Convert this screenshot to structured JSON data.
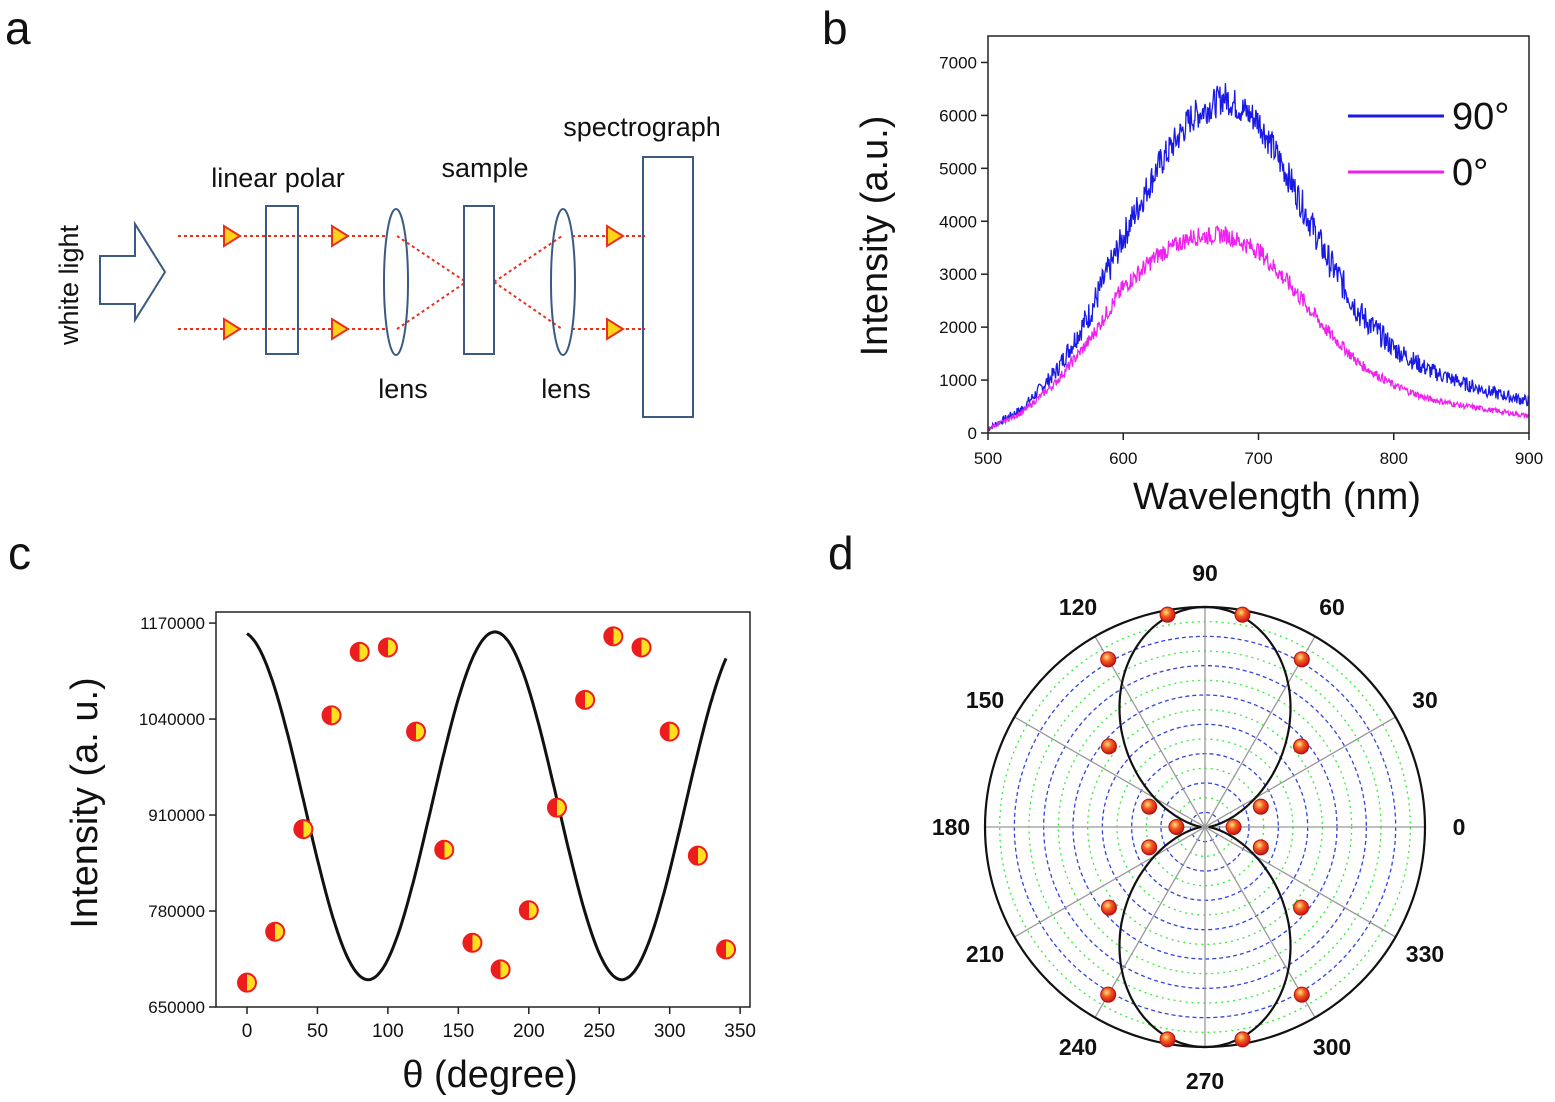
{
  "panels": {
    "a": {
      "letter": "a",
      "labels": {
        "white_light": "white light",
        "linear_polar": "linear  polar",
        "lens1": "lens",
        "sample": "sample",
        "lens2": "lens",
        "spectrograph": "spectrograph"
      },
      "colors": {
        "beam": "#e8301c",
        "triangle_fill": "#ffd21a",
        "component": "#3a5a82"
      }
    },
    "b": {
      "letter": "b"
    },
    "c": {
      "letter": "c"
    },
    "d": {
      "letter": "d"
    }
  },
  "chart_data": [
    {
      "id": "b",
      "type": "line",
      "xlabel": "Wavelength (nm)",
      "ylabel": "Intensity (a.u.)",
      "xlim": [
        500,
        900
      ],
      "ylim": [
        0,
        7500
      ],
      "xticks": [
        500,
        600,
        700,
        800,
        900
      ],
      "yticks": [
        0,
        1000,
        2000,
        3000,
        4000,
        5000,
        6000,
        7000
      ],
      "legend_position": "top-right",
      "grid": false,
      "x": [
        500,
        525,
        550,
        575,
        600,
        625,
        650,
        675,
        700,
        725,
        750,
        775,
        800,
        825,
        850,
        875,
        900
      ],
      "series": [
        {
          "name": "90°",
          "color": "#1a1ae6",
          "noise": 300,
          "values": [
            80,
            450,
            1150,
            2250,
            3700,
            5000,
            5950,
            6350,
            5900,
            4700,
            3350,
            2250,
            1600,
            1200,
            950,
            750,
            600
          ]
        },
        {
          "name": "0°",
          "color": "#ee22ee",
          "noise": 170,
          "values": [
            80,
            380,
            950,
            1750,
            2750,
            3350,
            3700,
            3750,
            3450,
            2750,
            1950,
            1300,
            900,
            650,
            520,
            420,
            320
          ]
        }
      ]
    },
    {
      "id": "c",
      "type": "scatter",
      "xlabel": "θ (degree)",
      "ylabel": "Intensity (a. u.)",
      "xlim": [
        -22,
        357
      ],
      "ylim": [
        650000,
        1185000
      ],
      "xticks": [
        0,
        50,
        100,
        150,
        200,
        250,
        300,
        350
      ],
      "yticks": [
        650000,
        780000,
        910000,
        1040000,
        1170000
      ],
      "ytick_labels": [
        "650000",
        "780000",
        "910000",
        "1040000",
        "1170000"
      ],
      "grid": false,
      "points": {
        "x": [
          0,
          20,
          40,
          60,
          80,
          100,
          120,
          140,
          160,
          180,
          200,
          220,
          240,
          260,
          280,
          300,
          320,
          340
        ],
        "y": [
          683000,
          752000,
          891000,
          1045000,
          1131000,
          1137000,
          1023000,
          863000,
          737000,
          701000,
          781000,
          920000,
          1066000,
          1152000,
          1137000,
          1023000,
          855000,
          728000
        ]
      },
      "fit": {
        "form": "mean - amp*cos(2θ - phase)",
        "mean": 922500,
        "amp": 235500,
        "phase_deg": 172
      },
      "colors": {
        "point_fill": "#ffe020",
        "point_stroke": "#ee1d1d",
        "fit": "#111111"
      }
    },
    {
      "id": "d",
      "type": "scatter",
      "polar": true,
      "angle_labels": [
        "0",
        "30",
        "60",
        "90",
        "120",
        "150",
        "180",
        "210",
        "240",
        "270",
        "300",
        "330"
      ],
      "points": {
        "theta": [
          0,
          20,
          40,
          60,
          80,
          100,
          120,
          140,
          160,
          180,
          200,
          220,
          240,
          260,
          280,
          300,
          320,
          340
        ],
        "r": [
          0.13,
          0.27,
          0.57,
          0.88,
          0.98,
          0.98,
          0.88,
          0.57,
          0.27,
          0.13,
          0.27,
          0.57,
          0.88,
          0.98,
          0.98,
          0.88,
          0.57,
          0.27
        ]
      },
      "fit": {
        "form": "r = 0.98*sin^2(θ) + 0.02"
      },
      "colors": {
        "rings_blue": "#3344dd",
        "rings_green": "#33ee33",
        "spokes": "#999999",
        "fit": "#111111",
        "point": "#e5231c"
      }
    }
  ]
}
